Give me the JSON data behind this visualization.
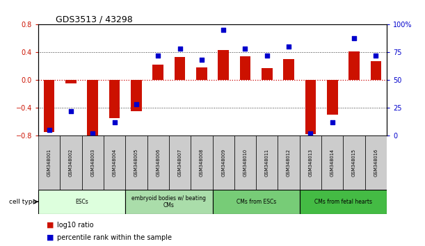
{
  "title": "GDS3513 / 43298",
  "samples": [
    "GSM348001",
    "GSM348002",
    "GSM348003",
    "GSM348004",
    "GSM348005",
    "GSM348006",
    "GSM348007",
    "GSM348008",
    "GSM348009",
    "GSM348010",
    "GSM348011",
    "GSM348012",
    "GSM348013",
    "GSM348014",
    "GSM348015",
    "GSM348016"
  ],
  "log10_ratio": [
    -0.75,
    -0.05,
    -0.8,
    -0.55,
    -0.45,
    0.22,
    0.33,
    0.18,
    0.43,
    0.34,
    0.17,
    0.3,
    -0.78,
    -0.5,
    0.41,
    0.27
  ],
  "percentile_rank": [
    5,
    22,
    2,
    12,
    28,
    72,
    78,
    68,
    95,
    78,
    72,
    80,
    2,
    12,
    88,
    72
  ],
  "cell_types": [
    {
      "label": "ESCs",
      "start": 0,
      "end": 4,
      "color": "#ddffdd"
    },
    {
      "label": "embryoid bodies w/ beating\nCMs",
      "start": 4,
      "end": 8,
      "color": "#aaddaa"
    },
    {
      "label": "CMs from ESCs",
      "start": 8,
      "end": 12,
      "color": "#77cc77"
    },
    {
      "label": "CMs from fetal hearts",
      "start": 12,
      "end": 16,
      "color": "#44bb44"
    }
  ],
  "ylim_left": [
    -0.8,
    0.8
  ],
  "ylim_right": [
    0,
    100
  ],
  "yticks_left": [
    -0.8,
    -0.4,
    0,
    0.4,
    0.8
  ],
  "yticks_right": [
    0,
    25,
    50,
    75,
    100
  ],
  "bar_color": "#cc1100",
  "dot_color": "#0000cc",
  "grid_color": "#333333",
  "zero_line_color": "#cc0000",
  "bg_color": "#ffffff",
  "plot_bg_color": "#ffffff",
  "tick_label_color_left": "#cc1100",
  "tick_label_color_right": "#0000cc",
  "sample_box_color": "#cccccc"
}
